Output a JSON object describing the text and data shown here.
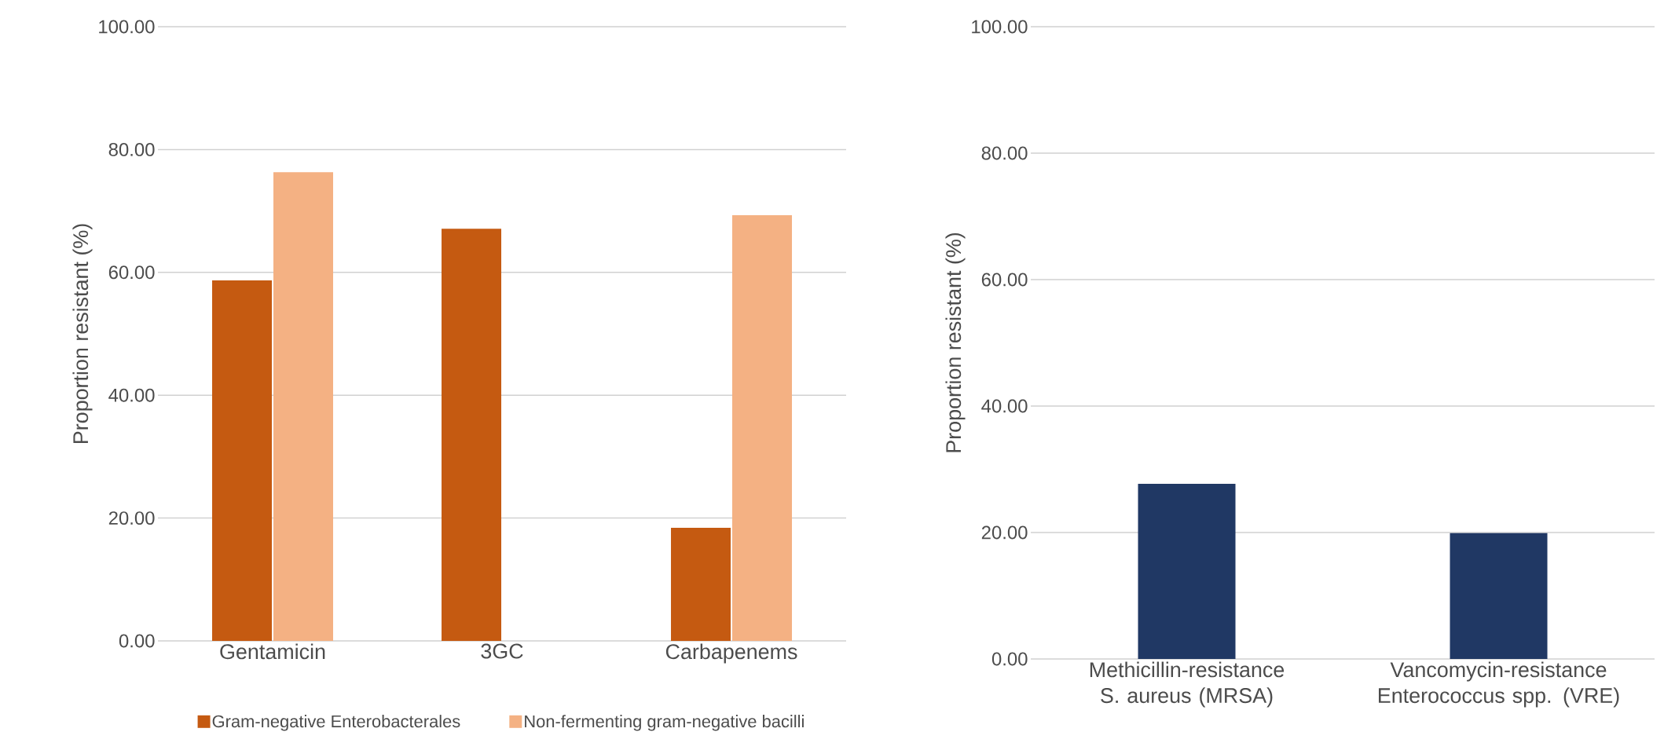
{
  "chart_data": [
    {
      "type": "bar",
      "ylabel": "Proportion resistant (%)",
      "categories": [
        "Gentamicin",
        "3GC",
        "Carbapenems"
      ],
      "series": [
        {
          "name": "Gram-negative Enterobacterales",
          "color": "#c55a11",
          "values": [
            58.7,
            67.1,
            18.4
          ]
        },
        {
          "name": "Non-fermenting gram-negative bacilli",
          "color": "#f4b183",
          "values": [
            76.3,
            null,
            69.3
          ]
        }
      ],
      "ylim": [
        0,
        100
      ],
      "yticks": [
        {
          "value": 0,
          "label": "0.00"
        },
        {
          "value": 20,
          "label": "20.00"
        },
        {
          "value": 40,
          "label": "40.00"
        },
        {
          "value": 60,
          "label": "60.00"
        },
        {
          "value": 80,
          "label": "80.00"
        },
        {
          "value": 100,
          "label": "100.00"
        }
      ],
      "grid": "y",
      "legend": "bottom"
    },
    {
      "type": "bar",
      "ylabel": "Proportion resistant (%)",
      "categories": [
        "Methicillin-resistance S. aureus (MRSA)",
        "Vancomycin-resistance Enterococcus spp. (VRE)"
      ],
      "series": [
        {
          "color": "#203864",
          "values": [
            27.7,
            19.9
          ]
        }
      ],
      "ylim": [
        0,
        100
      ],
      "yticks": [
        {
          "value": 0,
          "label": "0.00"
        },
        {
          "value": 20,
          "label": "20.00"
        },
        {
          "value": 40,
          "label": "40.00"
        },
        {
          "value": 60,
          "label": "60.00"
        },
        {
          "value": 80,
          "label": "80.00"
        },
        {
          "value": 100,
          "label": "100.00"
        }
      ],
      "grid": "y"
    }
  ]
}
